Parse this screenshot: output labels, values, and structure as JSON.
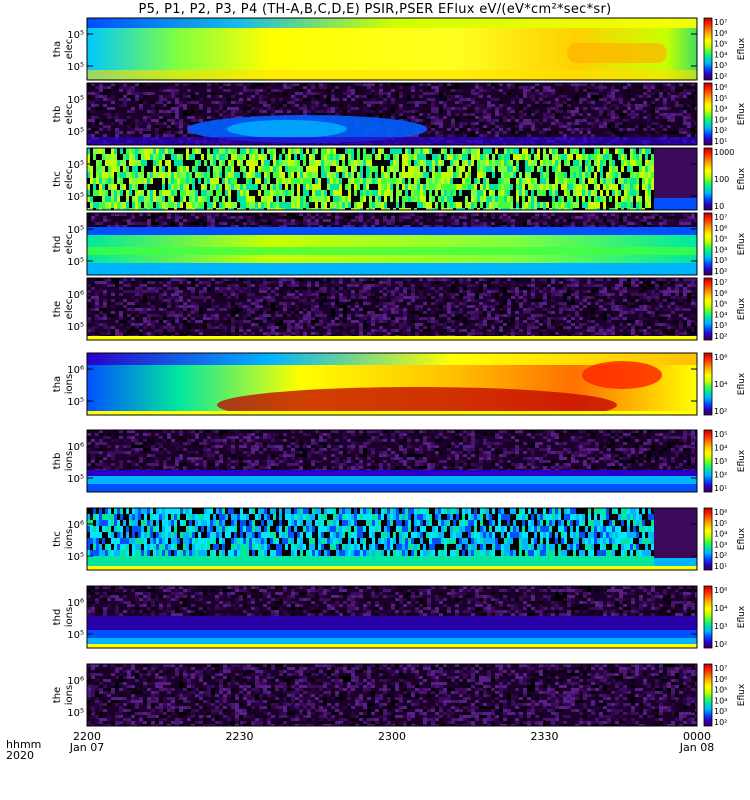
{
  "title": "P5, P1, P2, P3, P4 (TH-A,B,C,D,E) PSIR,PSER EFlux eV/(eV*cm²*sec*sr)",
  "time_axis": {
    "row1_label": "hhmm",
    "row2_label": "2020",
    "ticks": [
      {
        "time": "2200",
        "date": "Jan 07"
      },
      {
        "time": "2230",
        "date": ""
      },
      {
        "time": "2300",
        "date": ""
      },
      {
        "time": "2330",
        "date": ""
      },
      {
        "time": "0000",
        "date": "Jan 08"
      }
    ]
  },
  "colors": {
    "colormap": [
      "#3b0050",
      "#2a00c8",
      "#0050ff",
      "#00b4ff",
      "#00e6a0",
      "#40ff40",
      "#c8ff00",
      "#ffff00",
      "#ffc000",
      "#ff7000",
      "#ff2000",
      "#c00000"
    ],
    "fill_band": "#ffff00",
    "noise": "#3c0a5a"
  },
  "chart_data": [
    {
      "type": "heatmap",
      "probe": "tha",
      "species": "elec",
      "ylabel_top": "tha",
      "ylabel_bottom": "elec",
      "yticks": [
        "10⁵",
        "10⁵"
      ],
      "colorbar_label": "Eflux",
      "colorbar_ticks": [
        "10⁷",
        "10⁶",
        "10⁵",
        "10⁴",
        "10³",
        "10²"
      ],
      "pattern": "dense-yellow"
    },
    {
      "type": "heatmap",
      "probe": "thb",
      "species": "elec",
      "ylabel_top": "thb",
      "ylabel_bottom": "elec",
      "yticks": [
        "10⁵",
        "10⁵"
      ],
      "colorbar_label": "Eflux",
      "colorbar_ticks": [
        "10⁶",
        "10⁵",
        "10⁴",
        "10³",
        "10²",
        "10¹"
      ],
      "pattern": "sparse-blue-blob"
    },
    {
      "type": "heatmap",
      "probe": "thc",
      "species": "elec",
      "ylabel_top": "thc",
      "ylabel_bottom": "elec",
      "yticks": [
        "10⁵",
        "10⁵"
      ],
      "colorbar_label": "Eflux",
      "colorbar_ticks": [
        "1000",
        "100",
        "10"
      ],
      "pattern": "striped-green"
    },
    {
      "type": "heatmap",
      "probe": "thd",
      "species": "elec",
      "ylabel_top": "thd",
      "ylabel_bottom": "elec",
      "yticks": [
        "10⁵",
        "10⁵"
      ],
      "colorbar_label": "Eflux",
      "colorbar_ticks": [
        "10⁷",
        "10⁶",
        "10⁵",
        "10⁴",
        "10³",
        "10²"
      ],
      "pattern": "band-green"
    },
    {
      "type": "heatmap",
      "probe": "the",
      "species": "elec",
      "ylabel_top": "the",
      "ylabel_bottom": "elec",
      "yticks": [
        "10⁶",
        "10⁵"
      ],
      "colorbar_label": "Eflux",
      "colorbar_ticks": [
        "10⁷",
        "10⁶",
        "10⁵",
        "10⁴",
        "10³",
        "10²"
      ],
      "pattern": "noise"
    },
    {
      "type": "heatmap",
      "probe": "tha",
      "species": "ions",
      "ylabel_top": "tha",
      "ylabel_bottom": "ions",
      "yticks": [
        "10⁶",
        "10⁵"
      ],
      "colorbar_label": "Eflux",
      "colorbar_ticks": [
        "10⁶",
        "10⁴",
        "10²"
      ],
      "pattern": "dense-red"
    },
    {
      "type": "heatmap",
      "probe": "thb",
      "species": "ions",
      "ylabel_top": "thb",
      "ylabel_bottom": "ions",
      "yticks": [
        "10⁶",
        "10⁵"
      ],
      "colorbar_label": "Eflux",
      "colorbar_ticks": [
        "10⁵",
        "10⁴",
        "10³",
        "10²",
        "10¹"
      ],
      "pattern": "low-band-cyan"
    },
    {
      "type": "heatmap",
      "probe": "thc",
      "species": "ions",
      "ylabel_top": "thc",
      "ylabel_bottom": "ions",
      "yticks": [
        "10⁶",
        "10⁵"
      ],
      "colorbar_label": "Eflux",
      "colorbar_ticks": [
        "10⁶",
        "10⁵",
        "10⁴",
        "10³",
        "10²",
        "10¹"
      ],
      "pattern": "striped-cyan"
    },
    {
      "type": "heatmap",
      "probe": "thd",
      "species": "ions",
      "ylabel_top": "thd",
      "ylabel_bottom": "ions",
      "yticks": [
        "10⁶",
        "10⁵"
      ],
      "colorbar_label": "Eflux",
      "colorbar_ticks": [
        "10⁶",
        "10⁴",
        "10³",
        "10²"
      ],
      "pattern": "low-band-blue"
    },
    {
      "type": "heatmap",
      "probe": "the",
      "species": "ions",
      "ylabel_top": "the",
      "ylabel_bottom": "ions",
      "yticks": [
        "10⁶",
        "10⁵"
      ],
      "colorbar_label": "Eflux",
      "colorbar_ticks": [
        "10⁷",
        "10⁶",
        "10⁵",
        "10⁴",
        "10³",
        "10²"
      ],
      "pattern": "noise"
    }
  ]
}
